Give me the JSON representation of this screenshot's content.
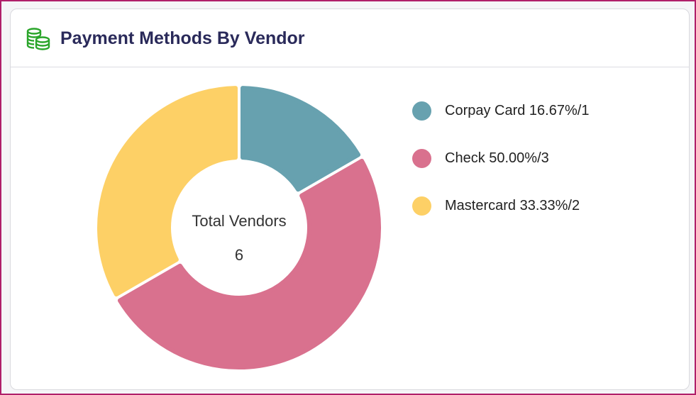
{
  "card": {
    "title": "Payment Methods By Vendor",
    "icon": "coins-stack-icon",
    "icon_color": "#2aa52a"
  },
  "chart_data": {
    "type": "pie",
    "donut": true,
    "center_label": "Total Vendors",
    "center_value": "6",
    "legend_position": "right",
    "slices": [
      {
        "name": "Corpay Card",
        "percent": 16.67,
        "count": 1,
        "label": "Corpay Card 16.67%/1",
        "color": "#67a1af"
      },
      {
        "name": "Check",
        "percent": 50.0,
        "count": 3,
        "label": "Check 50.00%/3",
        "color": "#d9718e"
      },
      {
        "name": "Mastercard",
        "percent": 33.33,
        "count": 2,
        "label": "Mastercard 33.33%/2",
        "color": "#fdd066"
      }
    ]
  }
}
